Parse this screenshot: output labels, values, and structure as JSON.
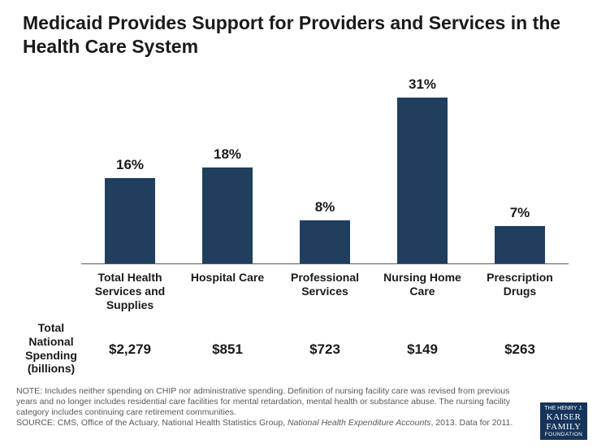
{
  "title": "Medicaid Provides Support for Providers and Services in the Health Care System",
  "chart": {
    "type": "bar",
    "bar_color": "#203f5f",
    "axis_color": "#5a5a5a",
    "label_fontsize": 17,
    "category_fontsize": 14,
    "background_color": "#ffffff",
    "ylim_max": 35,
    "bars": [
      {
        "category": "Total Health Services and Supplies",
        "value": 16,
        "label": "16%",
        "spending": "$2,279"
      },
      {
        "category": "Hospital Care",
        "value": 18,
        "label": "18%",
        "spending": "$851"
      },
      {
        "category": "Professional Services",
        "value": 8,
        "label": "8%",
        "spending": "$723"
      },
      {
        "category": "Nursing Home Care",
        "value": 31,
        "label": "31%",
        "spending": "$149"
      },
      {
        "category": "Prescription Drugs",
        "value": 7,
        "label": "7%",
        "spending": "$263"
      }
    ]
  },
  "spending_header": "Total National Spending (billions)",
  "note": "NOTE: Includes neither spending on CHIP nor administrative spending.  Definition of nursing facility care was revised from previous years and no longer includes residential care facilities for mental retardation, mental health or substance abuse. The nursing facility category includes  continuing care retirement communities.",
  "source_prefix": "SOURCE: CMS, Office of the Actuary, National Health Statistics Group, ",
  "source_italic": "National Health Expenditure Accounts",
  "source_suffix": ", 2013. Data for 2011.",
  "logo": {
    "line1": "THE HENRY J.",
    "line2": "KAISER",
    "line3": "FAMILY",
    "line4": "FOUNDATION"
  }
}
